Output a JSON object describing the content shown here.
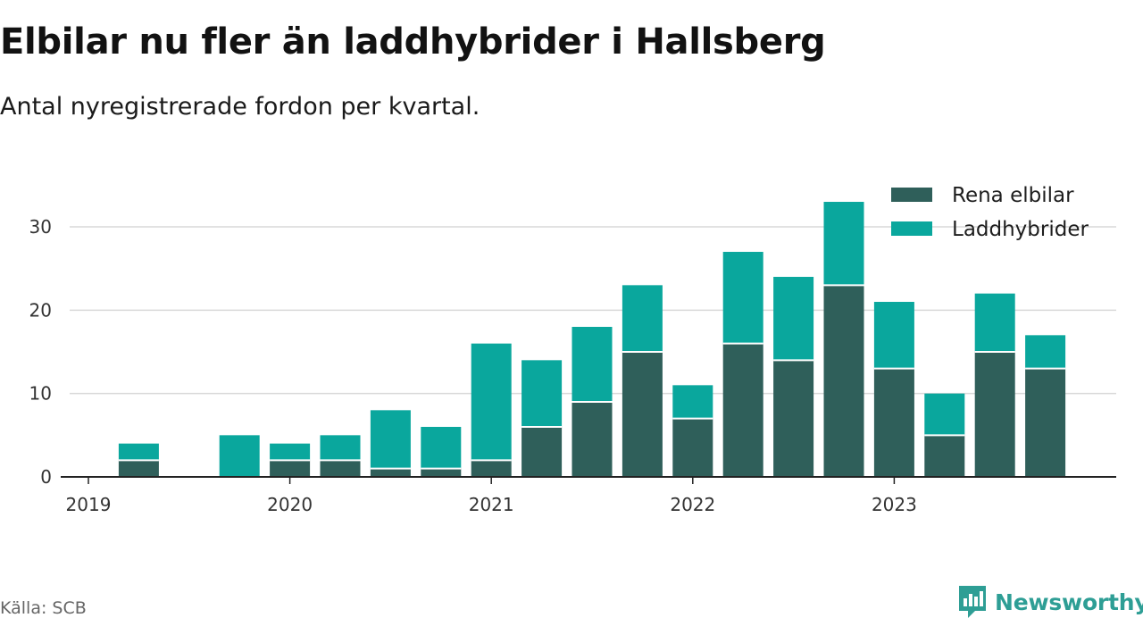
{
  "title": "Elbilar nu fler än laddhybrider i Hallsberg",
  "subtitle": "Antal nyregistrerade fordon per kvartal.",
  "source": "Källa: SCB",
  "brand": "Newsworthy",
  "colors": {
    "elbilar": "#2f5f5a",
    "laddhybrider": "#0aa79d",
    "grid": "#d9d9d9",
    "axis": "#222222",
    "text": "#333333",
    "brand": "#2e9e95"
  },
  "chart_data": {
    "type": "bar",
    "stacked": true,
    "title": "Elbilar nu fler än laddhybrider i Hallsberg",
    "subtitle": "Antal nyregistrerade fordon per kvartal.",
    "xlabel": "",
    "ylabel": "",
    "ylim": [
      0,
      35
    ],
    "yticks": [
      0,
      10,
      20,
      30
    ],
    "grid": true,
    "legend_position": "top-right",
    "x_tick_labels": [
      "2019",
      "2020",
      "2021",
      "2022",
      "2023"
    ],
    "categories": [
      "2019 Q1",
      "2019 Q2",
      "2019 Q3",
      "2019 Q4",
      "2020 Q1",
      "2020 Q2",
      "2020 Q3",
      "2020 Q4",
      "2021 Q1",
      "2021 Q2",
      "2021 Q3",
      "2021 Q4",
      "2022 Q1",
      "2022 Q2",
      "2022 Q3",
      "2022 Q4",
      "2023 Q1",
      "2023 Q2",
      "2023 Q3",
      "2023 Q4"
    ],
    "series": [
      {
        "name": "Rena elbilar",
        "values": [
          0,
          2,
          0,
          0,
          2,
          2,
          1,
          1,
          2,
          6,
          9,
          15,
          7,
          16,
          14,
          23,
          13,
          5,
          15,
          13
        ]
      },
      {
        "name": "Laddhybrider",
        "values": [
          0,
          2,
          0,
          5,
          2,
          3,
          7,
          5,
          14,
          8,
          9,
          8,
          4,
          11,
          10,
          10,
          8,
          5,
          7,
          4
        ]
      }
    ]
  }
}
